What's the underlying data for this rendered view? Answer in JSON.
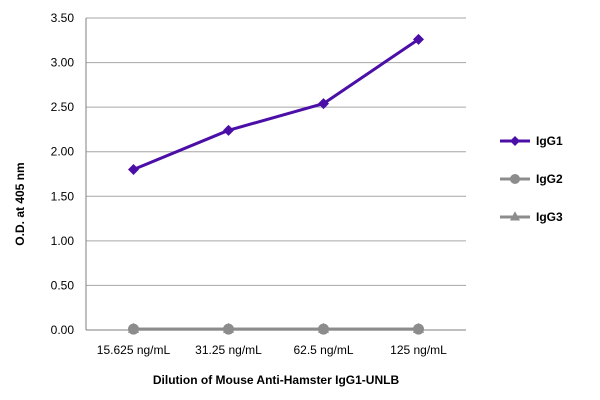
{
  "chart_data": {
    "type": "line",
    "categories": [
      "15.625 ng/mL",
      "31.25 ng/mL",
      "62.5 ng/mL",
      "125 ng/mL"
    ],
    "series": [
      {
        "name": "IgG1",
        "values": [
          1.8,
          2.24,
          2.54,
          3.26
        ],
        "color": "#4b0fa8",
        "marker": "diamond"
      },
      {
        "name": "IgG2",
        "values": [
          0.01,
          0.01,
          0.01,
          0.01
        ],
        "color": "#8c8c8c",
        "marker": "circle"
      },
      {
        "name": "IgG3",
        "values": [
          0.01,
          0.01,
          0.01,
          0.01
        ],
        "color": "#8c8c8c",
        "marker": "triangle"
      }
    ],
    "xlabel": "Dilution of Mouse Anti-Hamster IgG1-UNLB",
    "ylabel": "O.D. at 405 nm",
    "ylim": [
      0,
      3.5
    ],
    "yticks": [
      "0.00",
      "0.50",
      "1.00",
      "1.50",
      "2.00",
      "2.50",
      "3.00",
      "3.50"
    ],
    "grid": true,
    "legend": "right"
  }
}
